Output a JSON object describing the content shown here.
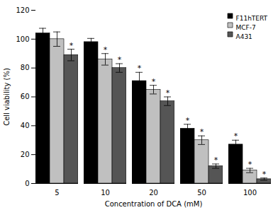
{
  "chart_data": {
    "type": "bar",
    "categories": [
      "5",
      "10",
      "20",
      "50",
      "100"
    ],
    "xlabel": "Concentration of DCA (mM)",
    "ylabel": "Cell viability (%)",
    "ylim": [
      0,
      120
    ],
    "yticks": [
      0,
      20,
      40,
      60,
      80,
      100,
      120
    ],
    "grid": false,
    "legend": "upper right",
    "series": [
      {
        "name": "F11hTERT",
        "color": "#000000",
        "values": [
          104,
          98,
          71,
          38,
          27
        ],
        "errors": [
          3.5,
          2.5,
          6,
          3,
          3
        ],
        "annotations": [
          {
            "category": "20",
            "text": "*"
          },
          {
            "category": "50",
            "text": "*"
          },
          {
            "category": "100",
            "text": "*"
          }
        ]
      },
      {
        "name": "MCF-7",
        "color": "#c0c0c0",
        "values": [
          100,
          86,
          65,
          30,
          9
        ],
        "errors": [
          5,
          4,
          3,
          3,
          1.5
        ],
        "annotations": [
          {
            "category": "10",
            "text": "*"
          },
          {
            "category": "20",
            "text": "*"
          },
          {
            "category": "50",
            "text": "*"
          },
          {
            "category": "100",
            "text": "*"
          }
        ]
      },
      {
        "name": "A431",
        "color": "#555555",
        "values": [
          89,
          80,
          57,
          12,
          3
        ],
        "errors": [
          4,
          3,
          3,
          1.5,
          0.8
        ],
        "annotations": [
          {
            "category": "5",
            "text": "*"
          },
          {
            "category": "10",
            "text": "*"
          },
          {
            "category": "20",
            "text": "*"
          },
          {
            "category": "50",
            "text": "*"
          },
          {
            "category": "100",
            "text": "*"
          }
        ]
      }
    ]
  }
}
